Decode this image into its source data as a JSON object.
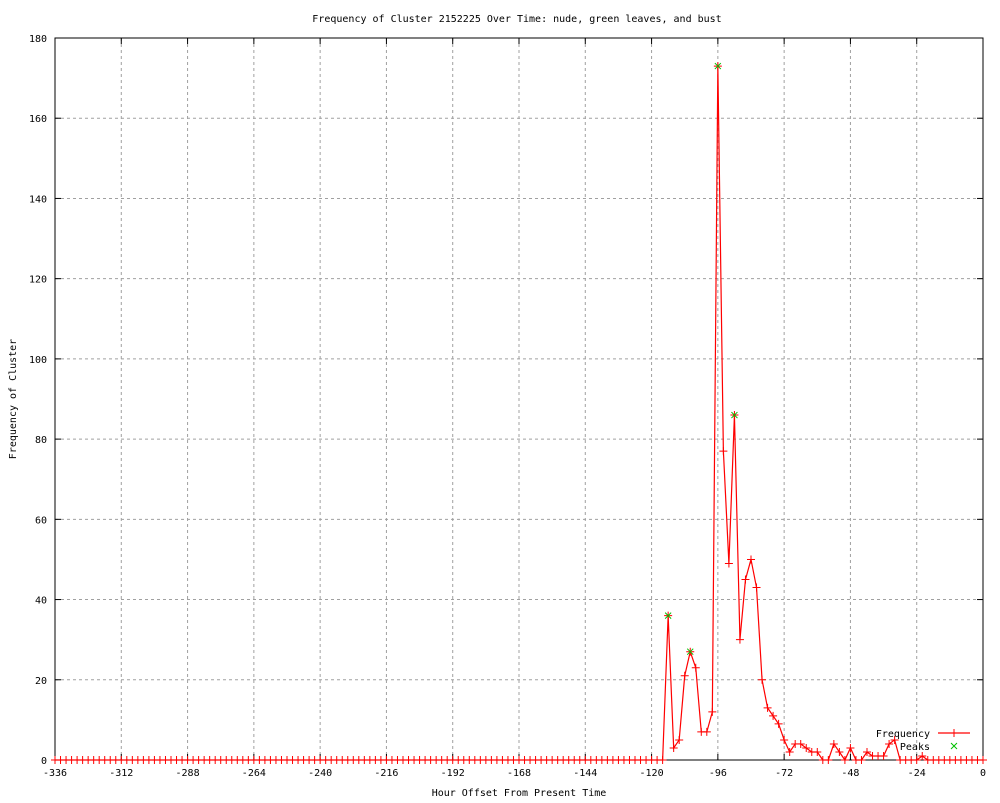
{
  "chart_data": {
    "type": "line",
    "title": "Frequency of Cluster 2152225 Over Time: nude, green leaves, and bust",
    "xlabel": "Hour Offset From Present Time",
    "ylabel": "Frequency of Cluster",
    "xlim": [
      -336,
      0
    ],
    "ylim": [
      0,
      180
    ],
    "xticks": [
      -336,
      -312,
      -288,
      -264,
      -240,
      -216,
      -192,
      -168,
      -144,
      -120,
      -96,
      -72,
      -48,
      -24,
      0
    ],
    "yticks": [
      0,
      20,
      40,
      60,
      80,
      100,
      120,
      140,
      160,
      180
    ],
    "grid": true,
    "legend_position": "bottom-right",
    "series": [
      {
        "name": "Frequency",
        "color": "#ff0000",
        "marker": "plus",
        "x": [
          -336,
          -334,
          -332,
          -330,
          -328,
          -326,
          -324,
          -322,
          -320,
          -318,
          -316,
          -314,
          -312,
          -310,
          -308,
          -306,
          -304,
          -302,
          -300,
          -298,
          -296,
          -294,
          -292,
          -290,
          -288,
          -286,
          -284,
          -282,
          -280,
          -278,
          -276,
          -274,
          -272,
          -270,
          -268,
          -266,
          -264,
          -262,
          -260,
          -258,
          -256,
          -254,
          -252,
          -250,
          -248,
          -246,
          -244,
          -242,
          -240,
          -238,
          -236,
          -234,
          -232,
          -230,
          -228,
          -226,
          -224,
          -222,
          -220,
          -218,
          -216,
          -214,
          -212,
          -210,
          -208,
          -206,
          -204,
          -202,
          -200,
          -198,
          -196,
          -194,
          -192,
          -190,
          -188,
          -186,
          -184,
          -182,
          -180,
          -178,
          -176,
          -174,
          -172,
          -170,
          -168,
          -166,
          -164,
          -162,
          -160,
          -158,
          -156,
          -154,
          -152,
          -150,
          -148,
          -146,
          -144,
          -142,
          -140,
          -138,
          -136,
          -134,
          -132,
          -130,
          -128,
          -126,
          -124,
          -122,
          -120,
          -118,
          -116,
          -114,
          -112,
          -110,
          -108,
          -106,
          -104,
          -102,
          -100,
          -98,
          -96,
          -94,
          -92,
          -90,
          -88,
          -86,
          -84,
          -82,
          -80,
          -78,
          -76,
          -74,
          -72,
          -70,
          -68,
          -66,
          -64,
          -62,
          -60,
          -58,
          -56,
          -54,
          -52,
          -50,
          -48,
          -46,
          -44,
          -42,
          -40,
          -38,
          -36,
          -34,
          -32,
          -30,
          -28,
          -26,
          -24,
          -22,
          -20,
          -18,
          -16,
          -14,
          -12,
          -10,
          -8,
          -6,
          -4,
          -2,
          0
        ],
        "y": [
          0,
          0,
          0,
          0,
          0,
          0,
          0,
          0,
          0,
          0,
          0,
          0,
          0,
          0,
          0,
          0,
          0,
          0,
          0,
          0,
          0,
          0,
          0,
          0,
          0,
          0,
          0,
          0,
          0,
          0,
          0,
          0,
          0,
          0,
          0,
          0,
          0,
          0,
          0,
          0,
          0,
          0,
          0,
          0,
          0,
          0,
          0,
          0,
          0,
          0,
          0,
          0,
          0,
          0,
          0,
          0,
          0,
          0,
          0,
          0,
          0,
          0,
          0,
          0,
          0,
          0,
          0,
          0,
          0,
          0,
          0,
          0,
          0,
          0,
          0,
          0,
          0,
          0,
          0,
          0,
          0,
          0,
          0,
          0,
          0,
          0,
          0,
          0,
          0,
          0,
          0,
          0,
          0,
          0,
          0,
          0,
          0,
          0,
          0,
          0,
          0,
          0,
          0,
          0,
          0,
          0,
          0,
          0,
          0,
          0,
          0,
          36,
          3,
          5,
          21,
          27,
          23,
          7,
          7,
          12,
          173,
          77,
          49,
          86,
          30,
          45,
          50,
          43,
          20,
          13,
          11,
          9,
          5,
          2,
          4,
          4,
          3,
          2,
          2,
          0,
          0,
          4,
          2,
          0,
          3,
          0,
          0,
          2,
          1,
          1,
          1,
          4,
          5,
          0,
          0,
          0,
          0,
          1,
          0,
          0,
          0,
          0,
          0,
          0,
          0,
          0,
          0,
          0,
          0
        ]
      },
      {
        "name": "Peaks",
        "color": "#00c000",
        "marker": "cross",
        "x": [
          -114,
          -106,
          -96,
          -90
        ],
        "y": [
          36,
          27,
          173,
          86
        ]
      }
    ]
  }
}
